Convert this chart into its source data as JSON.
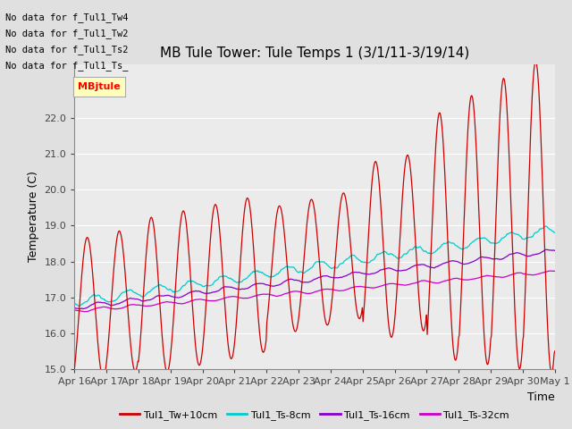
{
  "title": "MB Tule Tower: Tule Temps 1 (3/1/11-3/19/14)",
  "xlabel": "Time",
  "ylabel": "Temperature (C)",
  "ylim": [
    15.0,
    23.5
  ],
  "yticks": [
    15.0,
    16.0,
    17.0,
    18.0,
    19.0,
    20.0,
    21.0,
    22.0
  ],
  "xtick_labels": [
    "Apr 16",
    "Apr 17",
    "Apr 18",
    "Apr 19",
    "Apr 20",
    "Apr 21",
    "Apr 22",
    "Apr 23",
    "Apr 24",
    "Apr 25",
    "Apr 26",
    "Apr 27",
    "Apr 28",
    "Apr 29",
    "Apr 30",
    "May 1"
  ],
  "bg_color": "#e0e0e0",
  "plot_bg_color": "#ebebeb",
  "colors": {
    "Tw10": "#cc0000",
    "Ts8": "#00cccc",
    "Ts16": "#8800cc",
    "Ts32": "#cc00cc"
  },
  "legend_labels": [
    "Tul1_Tw+10cm",
    "Tul1_Ts-8cm",
    "Tul1_Ts-16cm",
    "Tul1_Ts-32cm"
  ],
  "no_data_texts": [
    "No data for f_Tul1_Tw4",
    "No data for f_Tul1_Tw2",
    "No data for f_Tul1_Ts2",
    "No data for f_Tul1_Ts_"
  ],
  "tooltip_text": "MBjtule",
  "title_fontsize": 11,
  "axis_label_fontsize": 9,
  "tick_fontsize": 8,
  "no_data_fontsize": 7.5
}
